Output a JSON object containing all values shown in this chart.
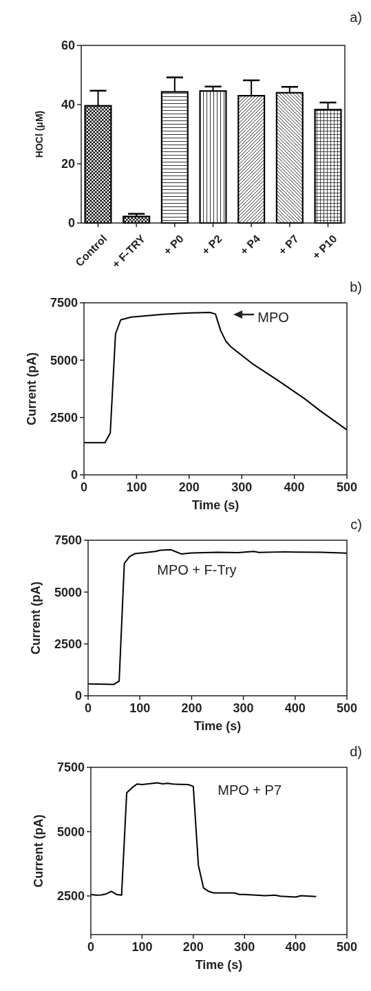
{
  "chart_data": [
    {
      "type": "bar",
      "title": "a)",
      "ylabel": "HOCl (μM)",
      "categories": [
        "Control",
        "+ F-TRY",
        "+ P0",
        "+ P2",
        "+ P4",
        "+ P7",
        "+ P10"
      ],
      "values": [
        39.6,
        2.2,
        44.3,
        44.6,
        43.0,
        44.0,
        38.3
      ],
      "errors": [
        [
          39.6,
          44.7
        ],
        [
          2.2,
          3.1
        ],
        [
          44.3,
          49.2
        ],
        [
          44.6,
          46.1
        ],
        [
          43.0,
          48.2
        ],
        [
          44.0,
          46.0
        ],
        [
          38.3,
          40.7
        ]
      ],
      "color": "#000000",
      "ylim": [
        0,
        60
      ],
      "yticks": [
        0,
        20,
        40,
        60
      ]
    },
    {
      "type": "line",
      "title": "b)",
      "xlabel": "Time (s)",
      "ylabel": "Current (pA)",
      "series": [
        {
          "color": "#000000",
          "x": [
            0,
            40,
            50,
            60,
            70,
            90,
            150,
            200,
            240,
            250,
            260,
            270,
            280,
            320,
            370,
            420,
            450,
            500
          ],
          "values": [
            1400,
            1400,
            1830,
            6150,
            6760,
            6880,
            7000,
            7060,
            7080,
            7010,
            6280,
            5820,
            5570,
            4850,
            4100,
            3310,
            2780,
            1960
          ]
        }
      ],
      "annotations": [
        "MPO"
      ],
      "xlim": [
        0,
        500
      ],
      "xticks": [
        0,
        100,
        200,
        300,
        400,
        500
      ],
      "ylim": [
        0,
        7500
      ],
      "yticks": [
        0,
        2500,
        5000,
        7500
      ]
    },
    {
      "type": "line",
      "title": "c)",
      "xlabel": "Time (s)",
      "ylabel": "Current (pA)",
      "series": [
        {
          "color": "#000000",
          "x": [
            0,
            50,
            60,
            70,
            80,
            90,
            110,
            130,
            140,
            160,
            180,
            200,
            250,
            290,
            320,
            330,
            380,
            400,
            450,
            500
          ],
          "values": [
            570,
            550,
            710,
            6380,
            6710,
            6850,
            6900,
            6960,
            7020,
            7040,
            6840,
            6890,
            6920,
            6900,
            6960,
            6910,
            6940,
            6930,
            6920,
            6880
          ]
        }
      ],
      "annotations": [
        "MPO + F-Try"
      ],
      "xlim": [
        0,
        500
      ],
      "xticks": [
        0,
        100,
        200,
        300,
        400,
        500
      ],
      "ylim": [
        0,
        7500
      ],
      "yticks": [
        0,
        2500,
        5000,
        7500
      ]
    },
    {
      "type": "line",
      "title": "d)",
      "xlabel": "Time (s)",
      "ylabel": "Current (pA)",
      "series": [
        {
          "color": "#000000",
          "x": [
            0,
            10,
            20,
            30,
            40,
            50,
            60,
            70,
            80,
            90,
            100,
            130,
            140,
            150,
            160,
            190,
            200,
            210,
            220,
            230,
            240,
            280,
            290,
            300,
            340,
            360,
            370,
            400,
            410,
            440
          ],
          "values": [
            2560,
            2530,
            2540,
            2580,
            2680,
            2560,
            2530,
            6510,
            6700,
            6850,
            6830,
            6900,
            6860,
            6880,
            6850,
            6830,
            6760,
            3690,
            2810,
            2680,
            2620,
            2620,
            2560,
            2560,
            2510,
            2530,
            2490,
            2460,
            2510,
            2480
          ]
        }
      ],
      "annotations": [
        "MPO + P7"
      ],
      "xlim": [
        0,
        500
      ],
      "xticks": [
        0,
        100,
        200,
        300,
        400,
        500
      ],
      "ylim": [
        1000,
        7500
      ],
      "yticks": [
        2500,
        5000,
        7500
      ]
    }
  ]
}
